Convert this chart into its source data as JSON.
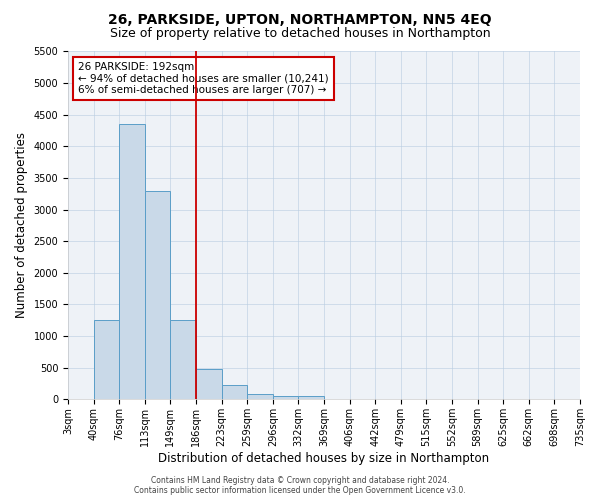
{
  "title": "26, PARKSIDE, UPTON, NORTHAMPTON, NN5 4EQ",
  "subtitle": "Size of property relative to detached houses in Northampton",
  "xlabel": "Distribution of detached houses by size in Northampton",
  "ylabel": "Number of detached properties",
  "bar_values": [
    0,
    1250,
    4350,
    3300,
    1250,
    480,
    220,
    90,
    50,
    50,
    0,
    0,
    0,
    0,
    0,
    0,
    0,
    0,
    0,
    0
  ],
  "x_labels": [
    "3sqm",
    "40sqm",
    "76sqm",
    "113sqm",
    "149sqm",
    "186sqm",
    "223sqm",
    "259sqm",
    "296sqm",
    "332sqm",
    "369sqm",
    "406sqm",
    "442sqm",
    "479sqm",
    "515sqm",
    "552sqm",
    "589sqm",
    "625sqm",
    "662sqm",
    "698sqm",
    "735sqm"
  ],
  "bar_color": "#c9d9e8",
  "bar_edge_color": "#5a9ec8",
  "annotation_text": "26 PARKSIDE: 192sqm\n← 94% of detached houses are smaller (10,241)\n6% of semi-detached houses are larger (707) →",
  "annotation_box_color": "#ffffff",
  "annotation_box_edge_color": "#cc0000",
  "red_line_index": 5,
  "ylim_max": 5500,
  "yticks": [
    0,
    500,
    1000,
    1500,
    2000,
    2500,
    3000,
    3500,
    4000,
    4500,
    5000,
    5500
  ],
  "footer_line1": "Contains HM Land Registry data © Crown copyright and database right 2024.",
  "footer_line2": "Contains public sector information licensed under the Open Government Licence v3.0.",
  "bg_color": "#eef2f7",
  "title_fontsize": 10,
  "subtitle_fontsize": 9,
  "xlabel_fontsize": 8.5,
  "ylabel_fontsize": 8.5,
  "tick_fontsize": 7,
  "footer_fontsize": 5.5,
  "annot_fontsize": 7.5
}
